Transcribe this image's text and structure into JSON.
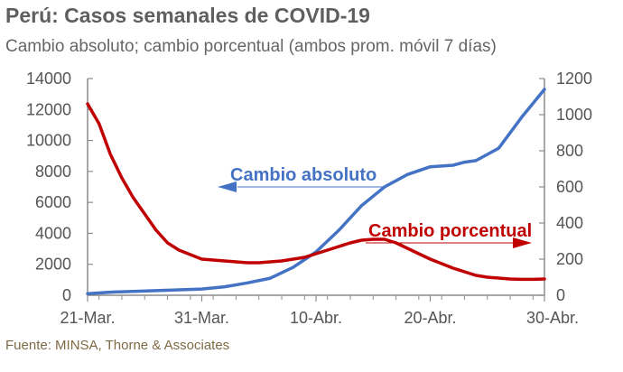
{
  "header": {
    "title": "Perú: Casos semanales de COVID-19",
    "subtitle": "Cambio absoluto; cambio porcentual (ambos prom. móvil 7 días)"
  },
  "footer": {
    "source": "Fuente: MINSA, Thorne & Associates"
  },
  "chart_data": {
    "type": "line",
    "x_tick_labels": [
      "21-Mar.",
      "31-Mar.",
      "10-Abr.",
      "20-Abr.",
      "30-Abr."
    ],
    "x_range": [
      "21-Mar.",
      "30-Abr."
    ],
    "left_ylim": [
      0,
      14000
    ],
    "left_yticks": [
      0,
      2000,
      4000,
      6000,
      8000,
      10000,
      12000,
      14000
    ],
    "right_ylim": [
      0,
      1200
    ],
    "right_yticks": [
      0,
      200,
      400,
      600,
      800,
      1000,
      1200
    ],
    "grid": false,
    "legend": "none",
    "annotations": [
      {
        "text": "Cambio absoluto",
        "series": "Cambio absoluto",
        "arrow": "left"
      },
      {
        "text": "Cambio porcentual",
        "series": "Cambio porcentual",
        "arrow": "right"
      }
    ],
    "series": [
      {
        "name": "Cambio absoluto",
        "axis": "left",
        "color": "#4472c4",
        "x": [
          0,
          2,
          4,
          6,
          8,
          10,
          12,
          14,
          16,
          18,
          20,
          22,
          24,
          25,
          26,
          28,
          30,
          32,
          33,
          34,
          36,
          38,
          40
        ],
        "values": [
          100,
          200,
          250,
          300,
          350,
          400,
          550,
          800,
          1100,
          1800,
          2800,
          4200,
          5800,
          6400,
          7000,
          7800,
          8300,
          8400,
          8600,
          8700,
          9500,
          11500,
          13300
        ]
      },
      {
        "name": "Cambio porcentual",
        "axis": "right",
        "color": "#c00000",
        "x": [
          0,
          1,
          2,
          3,
          4,
          5,
          6,
          7,
          8,
          9,
          10,
          11,
          12,
          13,
          14,
          15,
          16,
          17,
          18,
          19,
          20,
          21,
          22,
          23,
          24,
          25,
          26,
          27,
          28,
          29,
          30,
          31,
          32,
          33,
          34,
          35,
          36,
          37,
          38,
          39,
          40
        ],
        "values": [
          1060,
          950,
          780,
          650,
          540,
          450,
          360,
          290,
          250,
          225,
          200,
          195,
          190,
          185,
          180,
          180,
          185,
          190,
          200,
          210,
          230,
          250,
          270,
          290,
          305,
          310,
          310,
          290,
          260,
          230,
          200,
          175,
          150,
          130,
          110,
          100,
          95,
          90,
          88,
          88,
          90
        ]
      }
    ]
  }
}
